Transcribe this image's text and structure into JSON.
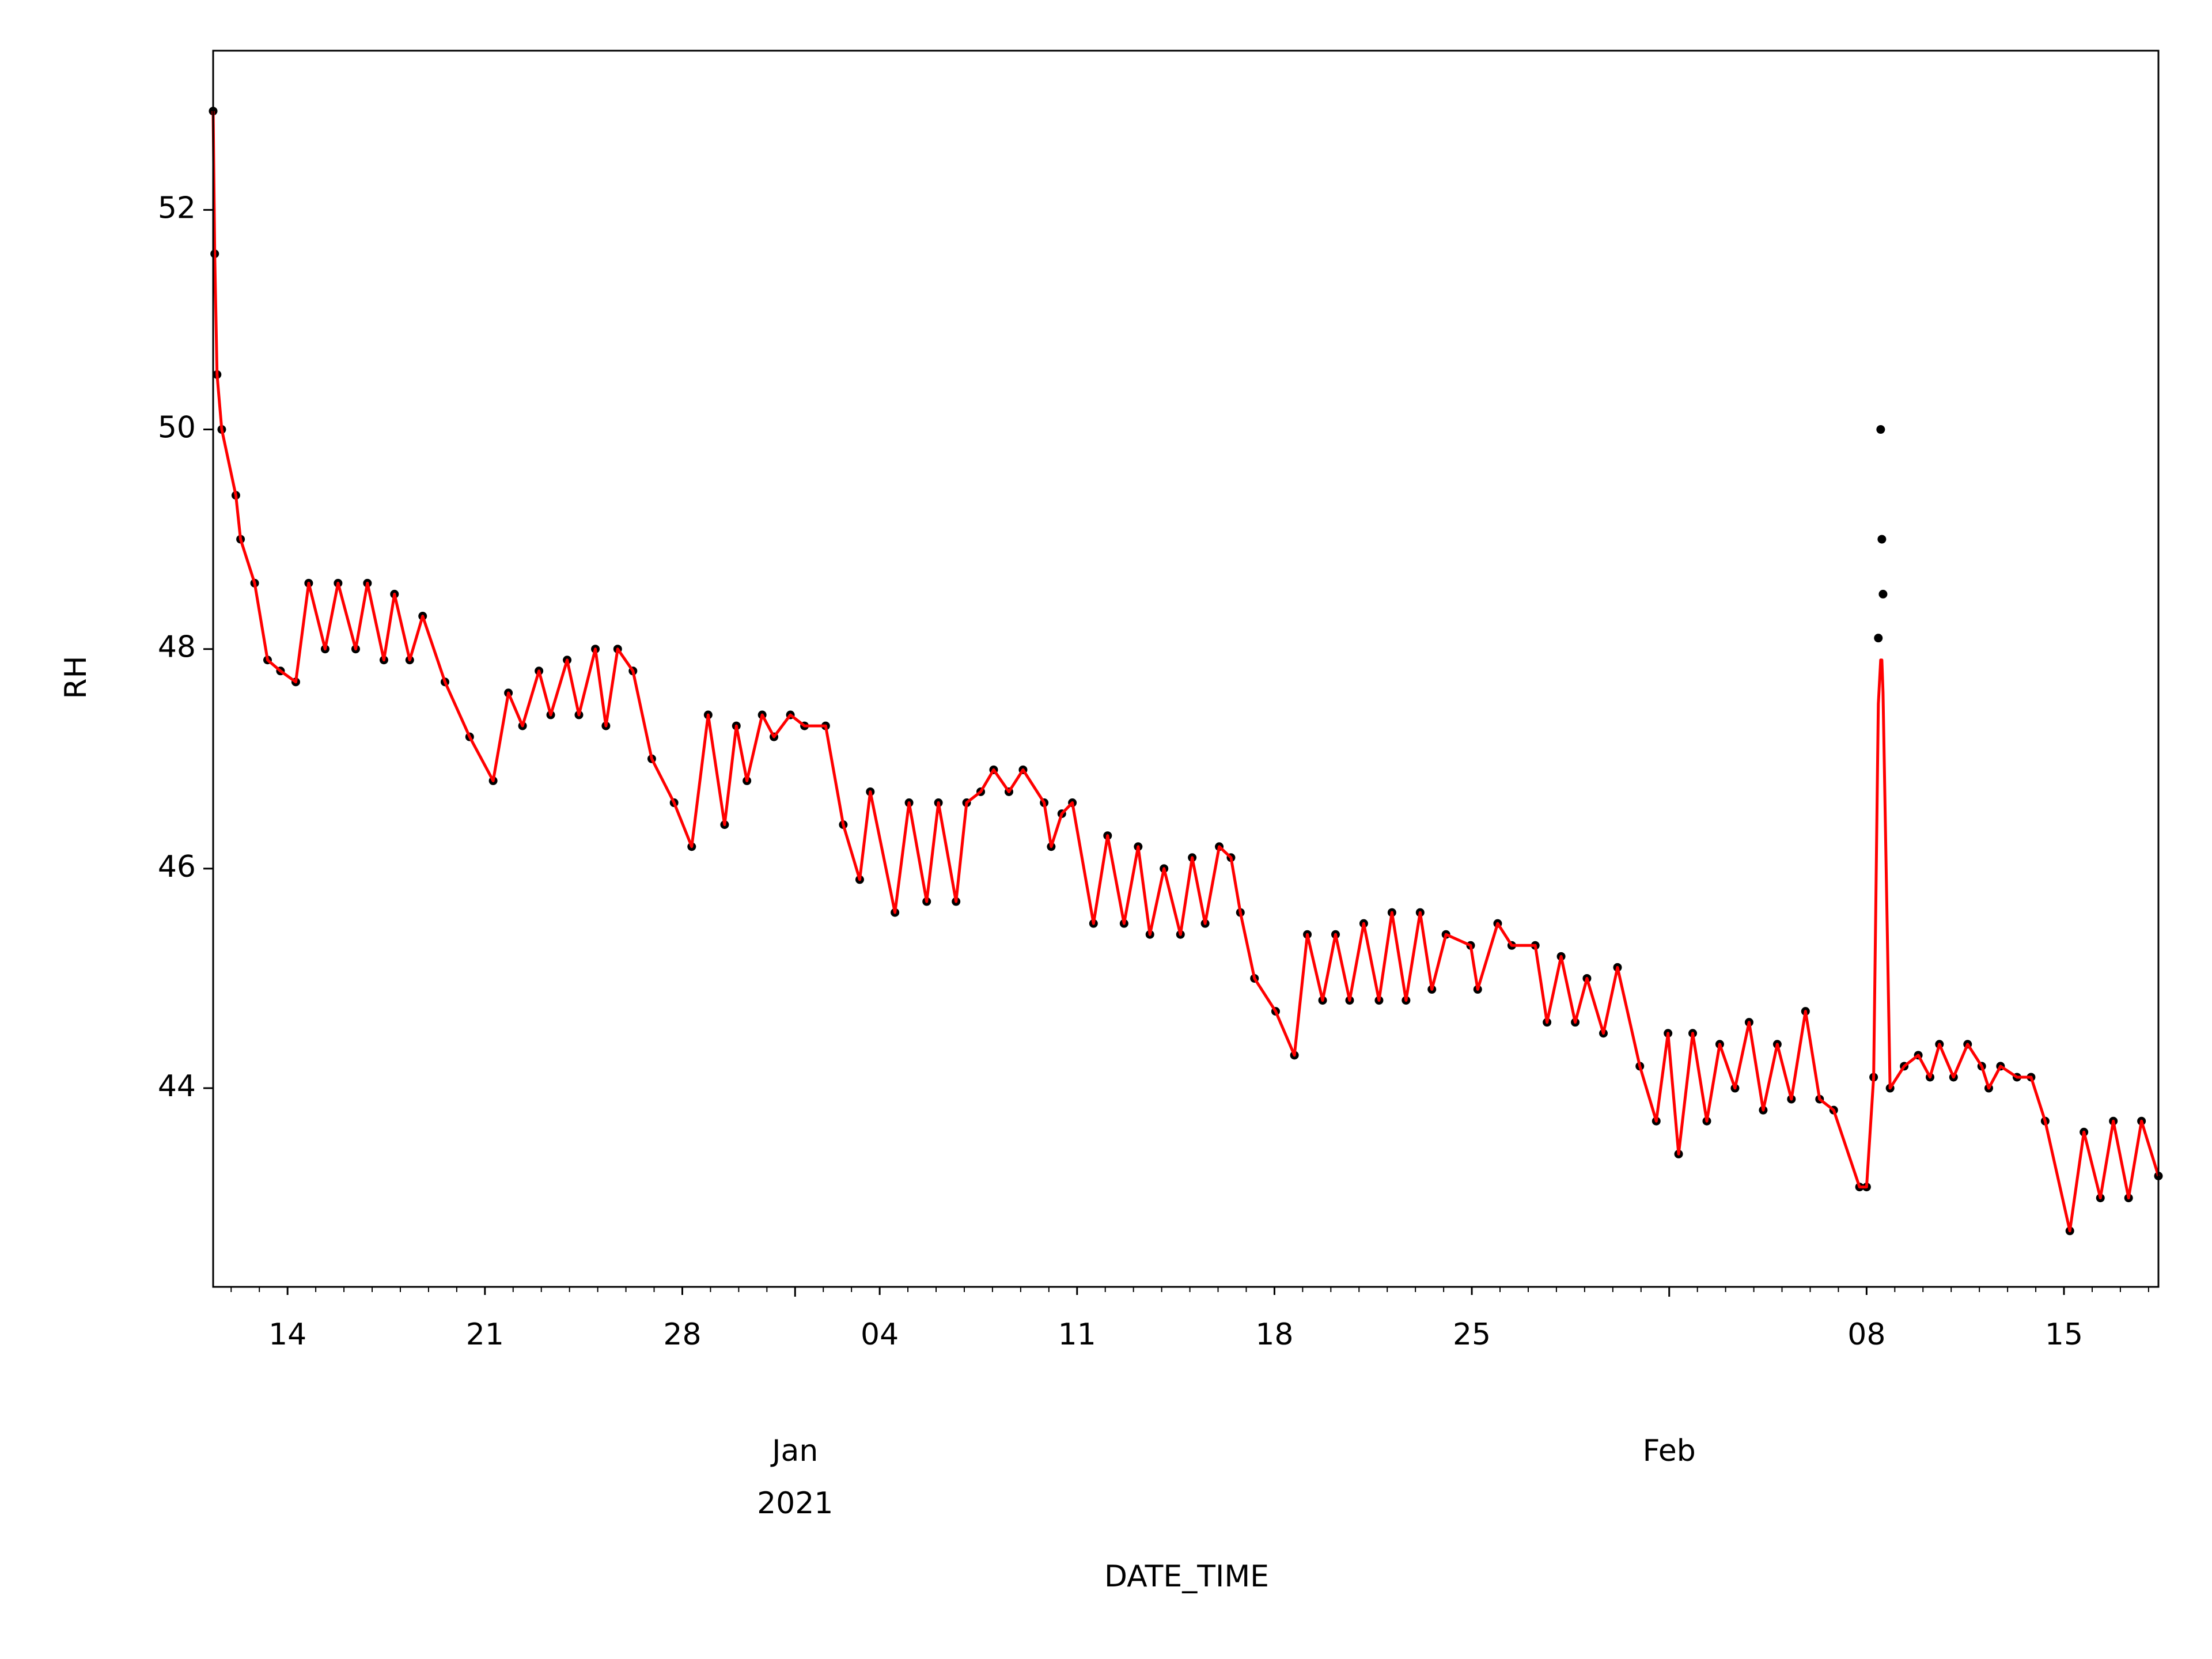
{
  "chart_data": {
    "type": "line",
    "xlabel": "DATE_TIME",
    "ylabel": "RH",
    "x": [
      "2020-12-11T08:40",
      "2020-12-11T10:00",
      "2020-12-11T12:00",
      "2020-12-11T16:00",
      "2020-12-12T04:00",
      "2020-12-12T08:00",
      "2020-12-12T20:00",
      "2020-12-13T07:00",
      "2020-12-13T18:00",
      "2020-12-14T07:00",
      "2020-12-14T18:00",
      "2020-12-15T08:00",
      "2020-12-15T19:00",
      "2020-12-16T10:00",
      "2020-12-16T20:00",
      "2020-12-17T10:00",
      "2020-12-17T19:00",
      "2020-12-18T08:00",
      "2020-12-18T19:00",
      "2020-12-19T14:00",
      "2020-12-20T11:00",
      "2020-12-21T07:00",
      "2020-12-21T20:00",
      "2020-12-22T08:00",
      "2020-12-22T22:00",
      "2020-12-23T08:00",
      "2020-12-23T22:00",
      "2020-12-24T08:00",
      "2020-12-24T22:00",
      "2020-12-25T07:00",
      "2020-12-25T17:00",
      "2020-12-26T06:00",
      "2020-12-26T22:00",
      "2020-12-27T17:00",
      "2020-12-28T08:00",
      "2020-12-28T22:00",
      "2020-12-29T12:00",
      "2020-12-29T22:00",
      "2020-12-30T07:00",
      "2020-12-30T20:00",
      "2020-12-31T06:00",
      "2020-12-31T20:00",
      "2021-01-01T08:00",
      "2021-01-02T02:00",
      "2021-01-02T17:00",
      "2021-01-03T07:00",
      "2021-01-03T16:00",
      "2021-01-04T13:00",
      "2021-01-05T01:00",
      "2021-01-05T16:00",
      "2021-01-06T02:00",
      "2021-01-06T17:00",
      "2021-01-07T02:00",
      "2021-01-07T14:00",
      "2021-01-08T01:00",
      "2021-01-08T14:00",
      "2021-01-09T02:00",
      "2021-01-09T20:00",
      "2021-01-10T02:00",
      "2021-01-10T11:00",
      "2021-01-10T20:00",
      "2021-01-11T14:00",
      "2021-01-12T02:00",
      "2021-01-12T16:00",
      "2021-01-13T04:00",
      "2021-01-13T14:00",
      "2021-01-14T02:00",
      "2021-01-14T16:00",
      "2021-01-15T02:00",
      "2021-01-15T13:00",
      "2021-01-16T01:00",
      "2021-01-16T11:00",
      "2021-01-16T19:00",
      "2021-01-17T07:00",
      "2021-01-18T01:00",
      "2021-01-18T17:00",
      "2021-01-19T04:00",
      "2021-01-19T17:00",
      "2021-01-20T04:00",
      "2021-01-20T16:00",
      "2021-01-21T04:00",
      "2021-01-21T17:00",
      "2021-01-22T04:00",
      "2021-01-22T16:00",
      "2021-01-23T04:00",
      "2021-01-23T14:00",
      "2021-01-24T02:00",
      "2021-01-24T23:00",
      "2021-01-25T05:00",
      "2021-01-25T22:00",
      "2021-01-26T10:00",
      "2021-01-27T06:00",
      "2021-01-27T16:00",
      "2021-01-28T04:00",
      "2021-01-28T16:00",
      "2021-01-29T02:00",
      "2021-01-29T16:00",
      "2021-01-30T04:00",
      "2021-01-30T23:00",
      "2021-01-31T13:00",
      "2021-01-31T23:00",
      "2021-02-01T08:00",
      "2021-02-01T20:00",
      "2021-02-02T08:00",
      "2021-02-02T19:00",
      "2021-02-03T08:00",
      "2021-02-03T20:00",
      "2021-02-04T08:00",
      "2021-02-04T20:00",
      "2021-02-05T08:00",
      "2021-02-05T20:00",
      "2021-02-06T08:00",
      "2021-02-06T20:00",
      "2021-02-07T18:00",
      "2021-02-08T00:00",
      "2021-02-08T06:00",
      "2021-02-08T10:00",
      "2021-02-08T12:00",
      "2021-02-08T13:00",
      "2021-02-08T14:00",
      "2021-02-08T20:00",
      "2021-02-09T08:00",
      "2021-02-09T20:00",
      "2021-02-10T06:00",
      "2021-02-10T14:00",
      "2021-02-11T02:00",
      "2021-02-11T14:00",
      "2021-02-12T02:00",
      "2021-02-12T08:00",
      "2021-02-12T18:00",
      "2021-02-13T08:00",
      "2021-02-13T20:00",
      "2021-02-14T08:00",
      "2021-02-15T05:00",
      "2021-02-15T17:00",
      "2021-02-16T07:00",
      "2021-02-16T18:00",
      "2021-02-17T07:00",
      "2021-02-17T18:00",
      "2021-02-18T08:24"
    ],
    "series": [
      {
        "style": "dots",
        "color": "#000000",
        "values": [
          52.9,
          51.6,
          50.5,
          50.0,
          49.4,
          49.0,
          48.6,
          47.9,
          47.8,
          47.7,
          48.6,
          48.0,
          48.6,
          48.0,
          48.6,
          47.9,
          48.5,
          47.9,
          48.3,
          47.7,
          47.2,
          46.8,
          47.6,
          47.3,
          47.8,
          47.4,
          47.9,
          47.4,
          48.0,
          47.3,
          48.0,
          47.8,
          47.0,
          46.6,
          46.2,
          47.4,
          46.4,
          47.3,
          46.8,
          47.4,
          47.2,
          47.4,
          47.3,
          47.3,
          46.4,
          45.9,
          46.7,
          45.6,
          46.6,
          45.7,
          46.6,
          45.7,
          46.6,
          46.7,
          46.9,
          46.7,
          46.9,
          46.6,
          46.2,
          46.5,
          46.6,
          45.5,
          46.3,
          45.5,
          46.2,
          45.4,
          46.0,
          45.4,
          46.1,
          45.5,
          46.2,
          46.1,
          45.6,
          45.0,
          44.7,
          44.3,
          45.4,
          44.8,
          45.4,
          44.8,
          45.5,
          44.8,
          45.6,
          44.8,
          45.6,
          44.9,
          45.4,
          45.3,
          44.9,
          45.5,
          45.3,
          45.3,
          44.6,
          45.2,
          44.6,
          45.0,
          44.5,
          45.1,
          44.2,
          43.7,
          44.5,
          43.4,
          44.5,
          43.7,
          44.4,
          44.0,
          44.6,
          43.8,
          44.4,
          43.9,
          44.7,
          43.9,
          43.8,
          43.1,
          43.1,
          44.1,
          48.1,
          50.0,
          49.0,
          48.5,
          44.0,
          44.2,
          44.3,
          44.1,
          44.4,
          44.1,
          44.4,
          44.2,
          44.0,
          44.2,
          44.1,
          44.1,
          43.7,
          42.7,
          43.6,
          43.0,
          43.7,
          43.0,
          43.7,
          43.2
        ]
      },
      {
        "style": "line",
        "color": "#ff0000",
        "values": [
          52.9,
          51.6,
          50.5,
          50.0,
          49.4,
          49.0,
          48.6,
          47.9,
          47.8,
          47.7,
          48.6,
          48.0,
          48.6,
          48.0,
          48.6,
          47.9,
          48.5,
          47.9,
          48.3,
          47.7,
          47.2,
          46.8,
          47.6,
          47.3,
          47.8,
          47.4,
          47.9,
          47.4,
          48.0,
          47.3,
          48.0,
          47.8,
          47.0,
          46.6,
          46.2,
          47.4,
          46.4,
          47.3,
          46.8,
          47.4,
          47.2,
          47.4,
          47.3,
          47.3,
          46.4,
          45.9,
          46.7,
          45.6,
          46.6,
          45.7,
          46.6,
          45.7,
          46.6,
          46.7,
          46.9,
          46.7,
          46.9,
          46.6,
          46.2,
          46.5,
          46.6,
          45.5,
          46.3,
          45.5,
          46.2,
          45.4,
          46.0,
          45.4,
          46.1,
          45.5,
          46.2,
          46.1,
          45.6,
          45.0,
          44.7,
          44.3,
          45.4,
          44.8,
          45.4,
          44.8,
          45.5,
          44.8,
          45.6,
          44.8,
          45.6,
          44.9,
          45.4,
          45.3,
          44.9,
          45.5,
          45.3,
          45.3,
          44.6,
          45.2,
          44.6,
          45.0,
          44.5,
          45.1,
          44.2,
          43.7,
          44.5,
          43.4,
          44.5,
          43.7,
          44.4,
          44.0,
          44.6,
          43.8,
          44.4,
          43.9,
          44.7,
          43.9,
          43.8,
          43.1,
          43.1,
          44.1,
          47.5,
          47.9,
          47.9,
          47.6,
          44.0,
          44.2,
          44.3,
          44.1,
          44.4,
          44.1,
          44.4,
          44.2,
          44.0,
          44.2,
          44.1,
          44.1,
          43.7,
          42.7,
          43.6,
          43.0,
          43.7,
          43.0,
          43.7,
          43.2
        ]
      }
    ],
    "xlim": [
      "2020-12-11T08:40",
      "2021-02-18T08:24"
    ],
    "ylim": [
      42.19,
      53.45
    ],
    "yticks": [
      44,
      46,
      48,
      50,
      52
    ],
    "xticks": [
      {
        "value": "2020-12-14",
        "label": "14"
      },
      {
        "value": "2020-12-21",
        "label": "21"
      },
      {
        "value": "2020-12-28",
        "label": "28"
      },
      {
        "value": "2021-01-04",
        "label": "04"
      },
      {
        "value": "2021-01-11",
        "label": "11"
      },
      {
        "value": "2021-01-18",
        "label": "18"
      },
      {
        "value": "2021-01-25",
        "label": "25"
      },
      {
        "value": "2021-02-08",
        "label": "08"
      },
      {
        "value": "2021-02-15",
        "label": "15"
      }
    ],
    "xticks_month": [
      {
        "value": "2021-01-01",
        "label": [
          "Jan",
          "2021"
        ]
      },
      {
        "value": "2021-02-01",
        "label": [
          "Feb"
        ]
      }
    ],
    "grid": false
  }
}
